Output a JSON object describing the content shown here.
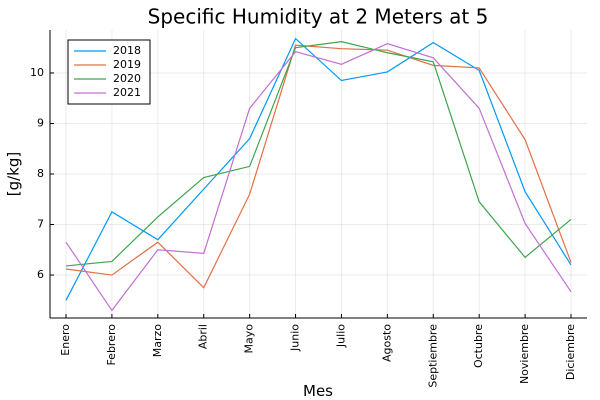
{
  "chart_data": {
    "type": "line",
    "title": "Specific Humidity at 2 Meters at 5",
    "x_label": "Mes",
    "y_label": "[g/kg]",
    "categories": [
      "Enero",
      "Febrero",
      "Marzo",
      "Abril",
      "Mayo",
      "Junio",
      "Julio",
      "Agosto",
      "Septiembre",
      "Octubre",
      "Noviembre",
      "Diciembre"
    ],
    "series": [
      {
        "name": "2018",
        "color": "#009af9",
        "values": [
          5.5,
          7.25,
          6.7,
          7.7,
          8.7,
          10.68,
          9.85,
          10.02,
          10.6,
          10.05,
          7.65,
          6.2
        ]
      },
      {
        "name": "2019",
        "color": "#e26f46",
        "values": [
          6.12,
          6.0,
          6.65,
          5.75,
          7.6,
          10.55,
          10.48,
          10.45,
          10.15,
          10.1,
          8.68,
          6.25
        ]
      },
      {
        "name": "2020",
        "color": "#3da44d",
        "values": [
          6.18,
          6.27,
          7.15,
          7.93,
          8.15,
          10.5,
          10.62,
          10.4,
          10.22,
          7.45,
          6.35,
          7.1
        ]
      },
      {
        "name": "2021",
        "color": "#c271d2",
        "values": [
          6.65,
          5.3,
          6.5,
          6.43,
          9.3,
          10.42,
          10.17,
          10.58,
          10.3,
          9.3,
          7.02,
          5.67
        ]
      }
    ],
    "ylim": [
      5.15,
      10.85
    ],
    "yticks": [
      6,
      7,
      8,
      9,
      10
    ],
    "grid": true,
    "legend": "top-left"
  }
}
